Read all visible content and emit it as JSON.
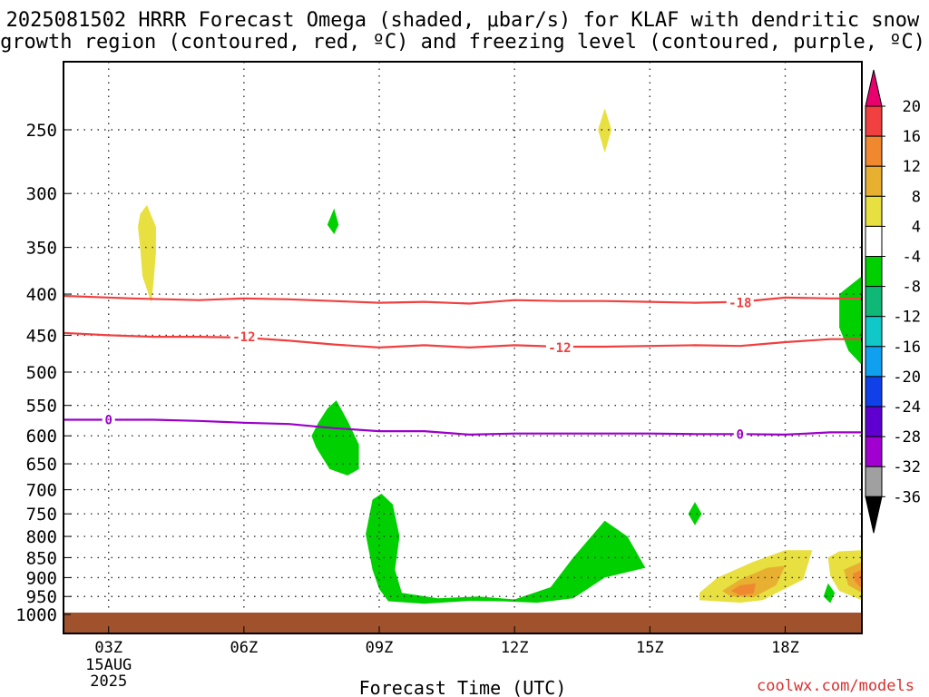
{
  "header": {
    "title_line1": "2025081502 HRRR Forecast Omega (shaded, μbar/s) for KLAF with dendritic snow",
    "title_line2": "growth region (contoured, red, ºC) and freezing level (contoured, purple, ºC)"
  },
  "footer": {
    "credit": "coolwx.com/models"
  },
  "chart_data": {
    "type": "contour",
    "xlabel": "Forecast Time (UTC)",
    "x_ticks": [
      "03Z",
      "06Z",
      "09Z",
      "12Z",
      "15Z",
      "18Z"
    ],
    "x_tick_hours": [
      3,
      6,
      9,
      12,
      15,
      18
    ],
    "x_date_label": "15AUG",
    "x_year_label": "2025",
    "x_range_hours": [
      2,
      19.7
    ],
    "y_axis": "pressure (hPa), inverted",
    "y_ticks": [
      250,
      300,
      350,
      400,
      450,
      500,
      550,
      600,
      650,
      700,
      750,
      800,
      850,
      900,
      950,
      1000
    ],
    "grid": true,
    "colorbar": {
      "labels": [
        20,
        16,
        12,
        8,
        4,
        -4,
        -8,
        -12,
        -16,
        -20,
        -24,
        -28,
        -32,
        -36
      ],
      "colors": [
        "#e8006e",
        "#f04040",
        "#f08830",
        "#e8b030",
        "#e8e040",
        "#ffffff",
        "#00d000",
        "#10b878",
        "#10c8c8",
        "#10a0f0",
        "#1040e8",
        "#6000d0",
        "#a000d0",
        "#a0a0a0",
        "#000000"
      ]
    },
    "contour_lines": [
      {
        "name": "dendritic -18",
        "color": "#f04040",
        "label": "-18",
        "points": [
          [
            2.0,
            402
          ],
          [
            3.5,
            405
          ],
          [
            5,
            407
          ],
          [
            6,
            405
          ],
          [
            7,
            406
          ],
          [
            8,
            408
          ],
          [
            9,
            410
          ],
          [
            10,
            409
          ],
          [
            11,
            411
          ],
          [
            12,
            407
          ],
          [
            13,
            408
          ],
          [
            14,
            408
          ],
          [
            15,
            409
          ],
          [
            16,
            410
          ],
          [
            17,
            409
          ],
          [
            18,
            404
          ],
          [
            19,
            405
          ],
          [
            19.7,
            405
          ]
        ],
        "label_at": [
          17.0,
          410
        ]
      },
      {
        "name": "dendritic -12",
        "color": "#f04040",
        "label": "-12",
        "points": [
          [
            2.0,
            447
          ],
          [
            3,
            450
          ],
          [
            4,
            452
          ],
          [
            5,
            452
          ],
          [
            6,
            453
          ],
          [
            7,
            457
          ],
          [
            8,
            462
          ],
          [
            9,
            466
          ],
          [
            10,
            463
          ],
          [
            11,
            466
          ],
          [
            12,
            463
          ],
          [
            13,
            465
          ],
          [
            14,
            465
          ],
          [
            15,
            464
          ],
          [
            16,
            463
          ],
          [
            17,
            464
          ],
          [
            18,
            459
          ],
          [
            19,
            455
          ],
          [
            19.7,
            455
          ]
        ],
        "label_at": [
          [
            6.0,
            452
          ],
          [
            13.0,
            466
          ]
        ]
      },
      {
        "name": "freezing level 0",
        "color": "#9b00c8",
        "label": "0",
        "points": [
          [
            2.0,
            573
          ],
          [
            3,
            573
          ],
          [
            4,
            573
          ],
          [
            5,
            575
          ],
          [
            6,
            578
          ],
          [
            7,
            580
          ],
          [
            8,
            587
          ],
          [
            9,
            592
          ],
          [
            10,
            592
          ],
          [
            11,
            598
          ],
          [
            12,
            596
          ],
          [
            13,
            596
          ],
          [
            14,
            596
          ],
          [
            15,
            596
          ],
          [
            16,
            597
          ],
          [
            17,
            597
          ],
          [
            18,
            598
          ],
          [
            19,
            594
          ],
          [
            19.7,
            594
          ]
        ],
        "label_at": [
          [
            3.0,
            573
          ],
          [
            17.0,
            597
          ]
        ]
      }
    ],
    "shaded_regions": [
      {
        "color": "#e8e040",
        "points": [
          [
            3.7,
            318
          ],
          [
            3.85,
            310
          ],
          [
            4.05,
            330
          ],
          [
            4.05,
            355
          ],
          [
            4.0,
            385
          ],
          [
            3.95,
            410
          ],
          [
            3.75,
            380
          ],
          [
            3.7,
            350
          ],
          [
            3.65,
            330
          ]
        ]
      },
      {
        "color": "#e8e040",
        "points": [
          [
            14.0,
            235
          ],
          [
            14.15,
            250
          ],
          [
            14.0,
            267
          ],
          [
            13.85,
            250
          ]
        ]
      },
      {
        "color": "#00d000",
        "points": [
          [
            8.0,
            313
          ],
          [
            8.1,
            328
          ],
          [
            8.0,
            337
          ],
          [
            7.85,
            328
          ]
        ]
      },
      {
        "color": "#00d000",
        "points": [
          [
            7.65,
            578
          ],
          [
            7.85,
            555
          ],
          [
            8.05,
            542
          ],
          [
            8.3,
            575
          ],
          [
            8.55,
            615
          ],
          [
            8.55,
            660
          ],
          [
            8.3,
            672
          ],
          [
            7.9,
            660
          ],
          [
            7.6,
            620
          ],
          [
            7.5,
            600
          ]
        ]
      },
      {
        "color": "#00d000",
        "points": [
          [
            8.7,
            795
          ],
          [
            8.85,
            720
          ],
          [
            9.05,
            708
          ],
          [
            9.3,
            730
          ],
          [
            9.45,
            800
          ],
          [
            9.35,
            880
          ],
          [
            9.5,
            940
          ],
          [
            10.3,
            955
          ],
          [
            11.2,
            950
          ],
          [
            12.0,
            958
          ],
          [
            12.8,
            925
          ],
          [
            13.3,
            850
          ],
          [
            14.0,
            765
          ],
          [
            14.5,
            800
          ],
          [
            14.9,
            875
          ],
          [
            14.0,
            900
          ],
          [
            13.3,
            955
          ],
          [
            12.5,
            967
          ],
          [
            11.7,
            963
          ],
          [
            11.0,
            962
          ],
          [
            10.0,
            970
          ],
          [
            9.2,
            963
          ],
          [
            9.0,
            930
          ],
          [
            8.85,
            880
          ]
        ]
      },
      {
        "color": "#00d000",
        "points": [
          [
            16.0,
            725
          ],
          [
            16.15,
            750
          ],
          [
            16.0,
            775
          ],
          [
            15.85,
            750
          ]
        ]
      },
      {
        "color": "#00d000",
        "points": [
          [
            19.2,
            400
          ],
          [
            19.7,
            380
          ],
          [
            19.7,
            490
          ],
          [
            19.4,
            470
          ],
          [
            19.2,
            440
          ]
        ]
      },
      {
        "color": "#00d000",
        "points": [
          [
            18.95,
            915
          ],
          [
            19.1,
            940
          ],
          [
            19.0,
            968
          ],
          [
            18.85,
            950
          ]
        ]
      },
      {
        "color": "#e8e040",
        "points": [
          [
            16.1,
            940
          ],
          [
            16.5,
            900
          ],
          [
            17.3,
            860
          ],
          [
            18.0,
            832
          ],
          [
            18.6,
            832
          ],
          [
            18.4,
            905
          ],
          [
            17.5,
            960
          ],
          [
            17.0,
            967
          ],
          [
            16.1,
            960
          ]
        ]
      },
      {
        "color": "#e8b030",
        "points": [
          [
            16.6,
            935
          ],
          [
            17.0,
            905
          ],
          [
            17.6,
            875
          ],
          [
            18.0,
            870
          ],
          [
            17.8,
            920
          ],
          [
            17.3,
            952
          ],
          [
            16.8,
            950
          ]
        ]
      },
      {
        "color": "#f08830",
        "points": [
          [
            16.8,
            935
          ],
          [
            17.0,
            920
          ],
          [
            17.35,
            915
          ],
          [
            17.3,
            942
          ],
          [
            17.0,
            947
          ]
        ]
      },
      {
        "color": "#e8e040",
        "points": [
          [
            18.95,
            850
          ],
          [
            19.2,
            835
          ],
          [
            19.7,
            832
          ],
          [
            19.7,
            960
          ],
          [
            19.2,
            935
          ],
          [
            19.0,
            895
          ]
        ]
      },
      {
        "color": "#e8b030",
        "points": [
          [
            19.3,
            880
          ],
          [
            19.7,
            860
          ],
          [
            19.7,
            940
          ],
          [
            19.4,
            920
          ]
        ]
      },
      {
        "color": "#f08830",
        "points": [
          [
            19.5,
            890
          ],
          [
            19.7,
            880
          ],
          [
            19.7,
            930
          ],
          [
            19.55,
            910
          ]
        ]
      }
    ],
    "ground_color": "#a0522d"
  }
}
